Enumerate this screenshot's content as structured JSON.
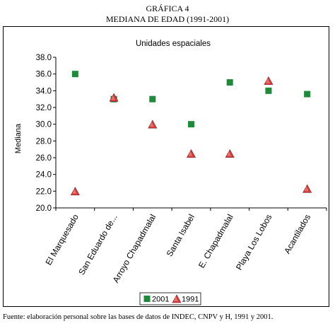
{
  "figure": {
    "number_label": "GRÁFICA 4",
    "title": "MEDIANA DE EDAD (1991-2001)",
    "source": "Fuente: elaboración personal sobre las bases de datos de INDEC, CNPV y H, 1991 y 2001."
  },
  "chart_data": {
    "type": "scatter",
    "title": "Unidades espaciales",
    "xlabel": "",
    "ylabel": "Mediana",
    "categories": [
      "El Marquesado",
      "San Eduardo de...",
      "Arroyo Chapadmalal",
      "Santa Isabel",
      "E. Chapadmalal",
      "Playa Los Lobos",
      "Acantilados"
    ],
    "ylim": [
      20.0,
      38.0
    ],
    "ytick_step": 2.0,
    "ytick_labels": [
      "20.0",
      "22.0",
      "24.0",
      "26.0",
      "28.0",
      "30.0",
      "32.0",
      "34.0",
      "36.0",
      "38.0"
    ],
    "grid": false,
    "legend_position": "bottom-center",
    "series": [
      {
        "name": "2001",
        "marker": "square",
        "color": "#1f8a3a",
        "values": [
          36.0,
          33.0,
          33.0,
          30.0,
          35.0,
          34.0,
          33.6
        ]
      },
      {
        "name": "1991",
        "marker": "triangle",
        "color": "#d83a3a",
        "values": [
          22.0,
          33.2,
          30.0,
          26.5,
          26.5,
          35.2,
          22.3
        ]
      }
    ]
  }
}
